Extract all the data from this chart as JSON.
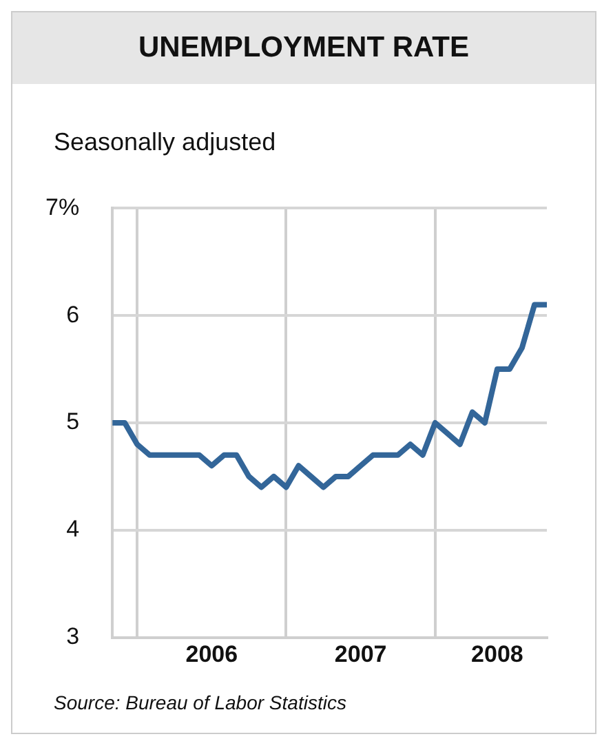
{
  "chart_data": {
    "type": "line",
    "title": "UNEMPLOYMENT RATE",
    "subtitle": "Seasonally adjusted",
    "x": [
      "2005-11",
      "2005-12",
      "2006-01",
      "2006-02",
      "2006-03",
      "2006-04",
      "2006-05",
      "2006-06",
      "2006-07",
      "2006-08",
      "2006-09",
      "2006-10",
      "2006-11",
      "2006-12",
      "2007-01",
      "2007-02",
      "2007-03",
      "2007-04",
      "2007-05",
      "2007-06",
      "2007-07",
      "2007-08",
      "2007-09",
      "2007-10",
      "2007-11",
      "2007-12",
      "2008-01",
      "2008-02",
      "2008-03",
      "2008-04",
      "2008-05",
      "2008-06",
      "2008-07",
      "2008-08",
      "2008-09",
      "2008-10"
    ],
    "series": [
      {
        "color": "#336699",
        "values": [
          5.0,
          5.0,
          4.8,
          4.7,
          4.7,
          4.7,
          4.7,
          4.7,
          4.6,
          4.7,
          4.7,
          4.5,
          4.4,
          4.5,
          4.4,
          4.6,
          4.5,
          4.4,
          4.5,
          4.5,
          4.6,
          4.7,
          4.7,
          4.7,
          4.8,
          4.7,
          5.0,
          4.9,
          4.8,
          5.1,
          5.0,
          5.5,
          5.5,
          5.7,
          6.1,
          6.1
        ]
      }
    ],
    "xlim": [
      "2005-11",
      "2008-10"
    ],
    "xticks": [
      {
        "value": "2006-01",
        "label": null
      },
      {
        "value": "2006-07",
        "label": "2006"
      },
      {
        "value": "2007-01",
        "label": null
      },
      {
        "value": "2007-07",
        "label": "2007"
      },
      {
        "value": "2008-01",
        "label": null
      },
      {
        "value": "2008-06",
        "label": "2008"
      }
    ],
    "ylim": [
      3,
      7
    ],
    "yticks": [
      3,
      4,
      5,
      6,
      {
        "value": 7,
        "label": "7%"
      }
    ],
    "grid": true,
    "legend": false,
    "marker": "none",
    "line_style": "solid",
    "annotations": [
      "Source: Bureau of Labor Statistics"
    ]
  }
}
